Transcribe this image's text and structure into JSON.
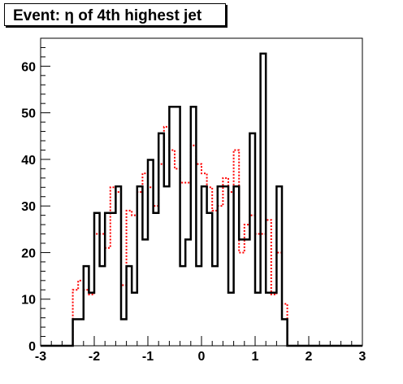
{
  "chart_data": {
    "type": "step",
    "title": "Event: η of 4th highest jet",
    "xlim": [
      -3,
      3
    ],
    "ylim": [
      0,
      66
    ],
    "x_ticks": [
      -3,
      -2,
      -1,
      0,
      1,
      2,
      3
    ],
    "x_tick_labels": [
      "-3",
      "-2",
      "-1",
      "0",
      "1",
      "2",
      "3"
    ],
    "y_ticks": [
      0,
      10,
      20,
      30,
      40,
      50,
      60
    ],
    "y_tick_labels": [
      "0",
      "10",
      "20",
      "30",
      "40",
      "50",
      "60"
    ],
    "bin_edges": [
      -3.0,
      -2.9,
      -2.8,
      -2.7,
      -2.6,
      -2.5,
      -2.4,
      -2.3,
      -2.2,
      -2.1,
      -2.0,
      -1.9,
      -1.8,
      -1.7,
      -1.6,
      -1.5,
      -1.4,
      -1.3,
      -1.2,
      -1.1,
      -1.0,
      -0.9,
      -0.8,
      -0.7,
      -0.6,
      -0.5,
      -0.4,
      -0.3,
      -0.2,
      -0.1,
      0.0,
      0.1,
      0.2,
      0.3,
      0.4,
      0.5,
      0.6,
      0.7,
      0.8,
      0.9,
      1.0,
      1.1,
      1.2,
      1.3,
      1.4,
      1.5,
      1.6,
      1.7,
      1.8,
      1.9,
      2.0,
      2.1,
      2.2,
      2.3,
      2.4,
      2.5,
      2.6,
      2.7,
      2.8,
      2.9,
      3.0
    ],
    "series": [
      {
        "style": "solid",
        "color": "#000000",
        "values": [
          0,
          0,
          0,
          0,
          0,
          0,
          5.7,
          5.7,
          17.1,
          11.4,
          28.5,
          17.1,
          28.5,
          28.5,
          34.2,
          5.7,
          17.1,
          11.4,
          34.2,
          22.8,
          39.9,
          28.5,
          45.6,
          34.2,
          51.3,
          51.3,
          17.1,
          22.8,
          51.3,
          17.1,
          34.2,
          28.5,
          17.1,
          34.2,
          34.2,
          11.4,
          34.2,
          22.8,
          22.8,
          45.6,
          11.4,
          62.7,
          11.4,
          11.4,
          34.2,
          5.7,
          0,
          0,
          0,
          0,
          0,
          0,
          0,
          0,
          0,
          0,
          0,
          0,
          0,
          0
        ]
      },
      {
        "style": "dashed",
        "color": "#ff0000",
        "values": [
          0,
          0,
          0,
          0,
          0,
          0,
          12.0,
          14.0,
          12.0,
          11.0,
          24.0,
          24.0,
          21.0,
          34.0,
          33.0,
          13.0,
          29.0,
          28.0,
          33.0,
          37.0,
          34.0,
          30.0,
          39.0,
          47.0,
          42.0,
          38.0,
          35.0,
          35.0,
          43.0,
          39.0,
          37.0,
          34.0,
          29.0,
          30.0,
          36.0,
          33.0,
          42.0,
          20.0,
          26.0,
          28.0,
          24.0,
          24.0,
          27.0,
          11.0,
          20.0,
          9.0,
          0,
          0,
          0,
          0,
          0,
          0,
          0,
          0,
          0,
          0,
          0,
          0,
          0,
          0
        ]
      }
    ]
  }
}
